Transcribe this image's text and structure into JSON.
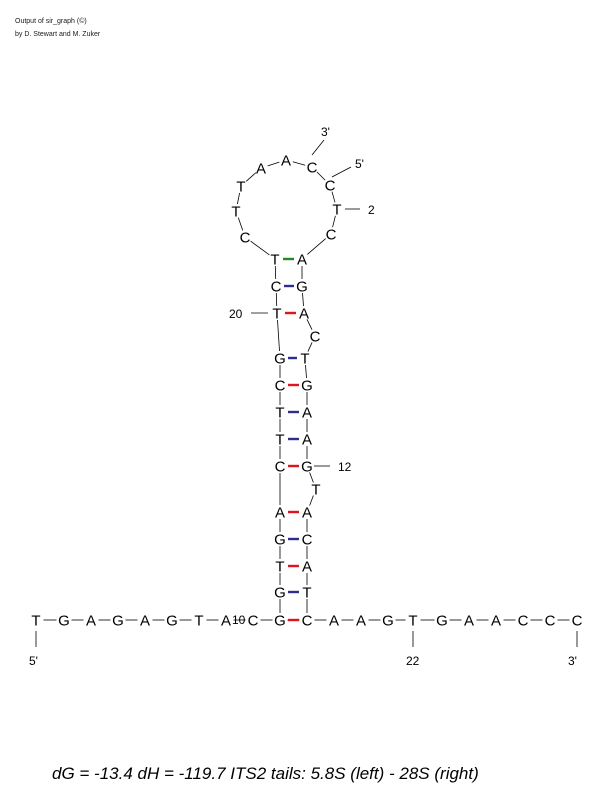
{
  "header": {
    "line1": "Output of sir_graph (©)",
    "line2": "by D. Stewart and M. Zuker"
  },
  "footer": {
    "energy_text": "dG = -13.4 dH = -119.7 ITS2 tails: 5.8S (left) - 28S (right)"
  },
  "colors": {
    "gc_pair": "#e0141e",
    "at_pair": "#2e2e8c",
    "gt_pair": "#1e8c1e",
    "backbone": "#000000"
  },
  "labels": {
    "hairpin_3prime": "3'",
    "hairpin_5prime": "5'",
    "num_2": "2",
    "num_20": "20",
    "num_12": "12",
    "num_10": "10",
    "tail_5prime": "5'",
    "num_22": "22",
    "tail_3prime": "3'"
  },
  "sequences": {
    "bottom_tail": [
      "T",
      "G",
      "A",
      "G",
      "A",
      "G",
      "T",
      "A",
      "C",
      "G",
      "C",
      "A",
      "A",
      "G",
      "T",
      "G",
      "A",
      "A",
      "C",
      "C",
      "C"
    ],
    "stem_left": [
      "G",
      "T",
      "G",
      "A",
      "C",
      "T",
      "T",
      "C",
      "G",
      "T",
      "C",
      "T"
    ],
    "stem_right": [
      "T",
      "A",
      "C",
      "A",
      "T",
      "G",
      "A",
      "A",
      "G",
      "T",
      "C",
      "A",
      "G",
      "A"
    ],
    "loop": [
      "C",
      "T",
      "T",
      "A",
      "A",
      "C",
      "C",
      "T",
      "C"
    ]
  }
}
